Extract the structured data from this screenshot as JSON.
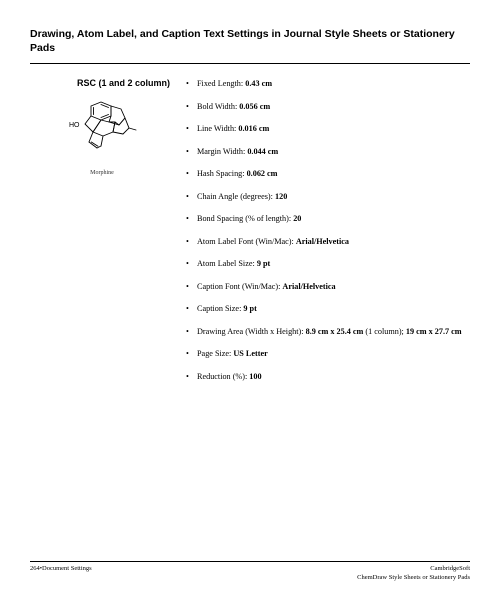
{
  "header": {
    "title": "Drawing, Atom Label, and Caption Text Settings in Journal Style Sheets or Stationery Pads"
  },
  "left": {
    "section_label": "RSC (1 and 2 column)",
    "molecule_caption": "Morphine",
    "molecule": {
      "stroke_color": "#000000",
      "stroke_width": 0.8,
      "ho_label": "HO"
    }
  },
  "specs": [
    {
      "label": "Fixed Length:",
      "value": "0.43 cm"
    },
    {
      "label": "Bold Width:",
      "value": "0.056 cm"
    },
    {
      "label": "Line Width:",
      "value": "0.016 cm"
    },
    {
      "label": "Margin Width:",
      "value": "0.044 cm"
    },
    {
      "label": "Hash Spacing:",
      "value": "0.062 cm"
    },
    {
      "label": "Chain Angle (degrees):",
      "value": "120"
    },
    {
      "label": "Bond Spacing (% of length):",
      "value": "20"
    },
    {
      "label": "Atom Label Font (Win/Mac):",
      "value": "Arial/Helvetica"
    },
    {
      "label": "Atom Label Size:",
      "value": "9 pt"
    },
    {
      "label": "Caption Font (Win/Mac):",
      "value": "Arial/Helvetica"
    },
    {
      "label": "Caption Size:",
      "value": "9 pt"
    },
    {
      "label": "Drawing Area (Width x Height):",
      "value": "8.9 cm x 25.4 cm",
      "suffix": " (1 column); ",
      "value2": "19 cm x 27.7 cm"
    },
    {
      "label": "Page Size:",
      "value": "US Letter"
    },
    {
      "label": "Reduction (%):",
      "value": "100"
    }
  ],
  "footer": {
    "left_line1": "264•Document Settings",
    "right_line1": "CambridgeSoft",
    "right_line2": "ChemDraw Style Sheets or Stationery Pads"
  }
}
